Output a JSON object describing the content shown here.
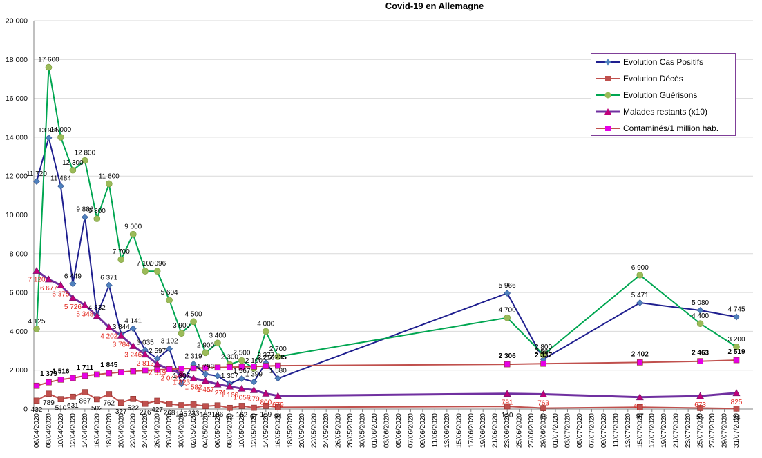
{
  "chart_data": {
    "type": "line",
    "title": "Covid-19 en Allemagne",
    "xlabel": "",
    "ylabel": "",
    "ylim": [
      0,
      20000
    ],
    "y_ticks": [
      "0",
      "2 000",
      "4 000",
      "6 000",
      "8 000",
      "10 000",
      "12 000",
      "14 000",
      "16 000",
      "18 000",
      "20 000"
    ],
    "x_tick_labels": [
      "06/04/2020",
      "08/04/2020",
      "10/04/2020",
      "12/04/2020",
      "14/04/2020",
      "16/04/2020",
      "18/04/2020",
      "20/04/2020",
      "22/04/2020",
      "24/04/2020",
      "26/04/2020",
      "28/04/2020",
      "30/04/2020",
      "02/05/2020",
      "04/05/2020",
      "06/05/2020",
      "08/05/2020",
      "10/05/2020",
      "12/05/2020",
      "14/05/2020",
      "16/05/2020",
      "18/05/2020",
      "20/05/2020",
      "22/05/2020",
      "24/05/2020",
      "26/05/2020",
      "28/05/2020",
      "30/05/2020",
      "01/06/2020",
      "03/06/2020",
      "05/06/2020",
      "07/06/2020",
      "09/06/2020",
      "11/06/2020",
      "13/06/2020",
      "15/06/2020",
      "17/06/2020",
      "19/06/2020",
      "21/06/2020",
      "23/06/2020",
      "25/06/2020",
      "27/06/2020",
      "29/06/2020",
      "01/07/2020",
      "03/07/2020",
      "05/07/2020",
      "07/07/2020",
      "09/07/2020",
      "11/07/2020",
      "13/07/2020",
      "15/07/2020",
      "17/07/2020",
      "19/07/2020",
      "21/07/2020",
      "23/07/2020",
      "25/07/2020",
      "27/07/2020",
      "29/07/2020",
      "31/07/2020"
    ],
    "legend_position": "top-right",
    "grid": "horizontal",
    "series": [
      {
        "name": "Evolution Cas Positifs",
        "color": "#1f1f8f",
        "marker": "diamond",
        "marker_color": "#4f81bd",
        "points": [
          {
            "x": "06/04/2020",
            "y": 11720,
            "label": "11 720"
          },
          {
            "x": "08/04/2020",
            "y": 13965,
            "label": "13 965"
          },
          {
            "x": "10/04/2020",
            "y": 11484,
            "label": "11 484"
          },
          {
            "x": "12/04/2020",
            "y": 6449,
            "label": "6 449"
          },
          {
            "x": "14/04/2020",
            "y": 9886,
            "label": "9 886"
          },
          {
            "x": "16/04/2020",
            "y": 4832,
            "label": "4 832"
          },
          {
            "x": "18/04/2020",
            "y": 6371,
            "label": "6 371"
          },
          {
            "x": "20/04/2020",
            "y": 3844,
            "label": "3 844"
          },
          {
            "x": "22/04/2020",
            "y": 4141,
            "label": "4 141"
          },
          {
            "x": "24/04/2020",
            "y": 3035,
            "label": "3 035"
          },
          {
            "x": "26/04/2020",
            "y": 2597,
            "label": "2 597"
          },
          {
            "x": "28/04/2020",
            "y": 3102,
            "label": "3 102"
          },
          {
            "x": "30/04/2020",
            "y": 1307,
            "label": "1 307"
          },
          {
            "x": "02/05/2020",
            "y": 2319,
            "label": "2 319"
          },
          {
            "x": "04/05/2020",
            "y": 1798,
            "label": "1 798"
          },
          {
            "x": "06/05/2020",
            "y": 1707,
            "label": ""
          },
          {
            "x": "08/05/2020",
            "y": 1307,
            "label": "1 307"
          },
          {
            "x": "10/05/2020",
            "y": 1567,
            "label": "1 567"
          },
          {
            "x": "12/05/2020",
            "y": 1399,
            "label": "1 399"
          },
          {
            "x": "14/05/2020",
            "y": 2377,
            "label": "2 377"
          },
          {
            "x": "16/05/2020",
            "y": 1580,
            "label": "1 580"
          },
          {
            "x": "23/06/2020",
            "y": 5966,
            "label": "5 966"
          },
          {
            "x": "29/06/2020",
            "y": 2564,
            "label": "2 564"
          },
          {
            "x": "15/07/2020",
            "y": 5471,
            "label": "5 471"
          },
          {
            "x": "25/07/2020",
            "y": 5080,
            "label": "5 080"
          },
          {
            "x": "31/07/2020",
            "y": 4745,
            "label": "4 745"
          }
        ]
      },
      {
        "name": "Evolution Décès",
        "color": "#c0504d",
        "marker": "square",
        "points": [
          {
            "x": "06/04/2020",
            "y": 432,
            "label": "432"
          },
          {
            "x": "08/04/2020",
            "y": 789,
            "label": "789"
          },
          {
            "x": "10/04/2020",
            "y": 510,
            "label": "510"
          },
          {
            "x": "12/04/2020",
            "y": 631,
            "label": "631"
          },
          {
            "x": "14/04/2020",
            "y": 867,
            "label": "867"
          },
          {
            "x": "16/04/2020",
            "y": 502,
            "label": "502"
          },
          {
            "x": "18/04/2020",
            "y": 762,
            "label": "762"
          },
          {
            "x": "20/04/2020",
            "y": 327,
            "label": "327"
          },
          {
            "x": "22/04/2020",
            "y": 522,
            "label": "522"
          },
          {
            "x": "24/04/2020",
            "y": 276,
            "label": "276"
          },
          {
            "x": "26/04/2020",
            "y": 427,
            "label": "427"
          },
          {
            "x": "28/04/2020",
            "y": 268,
            "label": "268"
          },
          {
            "x": "30/04/2020",
            "y": 195,
            "label": "195"
          },
          {
            "x": "02/05/2020",
            "y": 233,
            "label": "233"
          },
          {
            "x": "04/05/2020",
            "y": 152,
            "label": "152"
          },
          {
            "x": "06/05/2020",
            "y": 186,
            "label": "186"
          },
          {
            "x": "08/05/2020",
            "y": 62,
            "label": "62"
          },
          {
            "x": "10/05/2020",
            "y": 162,
            "label": "162"
          },
          {
            "x": "12/05/2020",
            "y": 67,
            "label": "67"
          },
          {
            "x": "14/05/2020",
            "y": 169,
            "label": "169"
          },
          {
            "x": "16/05/2020",
            "y": 94,
            "label": "94"
          },
          {
            "x": "23/06/2020",
            "y": 140,
            "label": "140"
          },
          {
            "x": "29/06/2020",
            "y": 48,
            "label": "48"
          },
          {
            "x": "15/07/2020",
            "y": 97,
            "label": "97"
          },
          {
            "x": "25/07/2020",
            "y": 54,
            "label": "54"
          },
          {
            "x": "31/07/2020",
            "y": 24,
            "label": "24"
          }
        ]
      },
      {
        "name": "Evolution Guérisons",
        "color": "#00a651",
        "marker": "circle",
        "marker_color": "#9bbb59",
        "points": [
          {
            "x": "06/04/2020",
            "y": 4125,
            "label": "4 125"
          },
          {
            "x": "08/04/2020",
            "y": 17600,
            "label": "17 600"
          },
          {
            "x": "10/04/2020",
            "y": 14000,
            "label": "14 000"
          },
          {
            "x": "12/04/2020",
            "y": 12300,
            "label": "12 300"
          },
          {
            "x": "14/04/2020",
            "y": 12800,
            "label": "12 800"
          },
          {
            "x": "16/04/2020",
            "y": 9800,
            "label": "9 800"
          },
          {
            "x": "18/04/2020",
            "y": 11600,
            "label": "11 600"
          },
          {
            "x": "20/04/2020",
            "y": 7700,
            "label": "7 700"
          },
          {
            "x": "22/04/2020",
            "y": 9000,
            "label": "9 000"
          },
          {
            "x": "24/04/2020",
            "y": 7100,
            "label": "7 100"
          },
          {
            "x": "26/04/2020",
            "y": 7096,
            "label": "7 096"
          },
          {
            "x": "28/04/2020",
            "y": 5604,
            "label": "5 604"
          },
          {
            "x": "30/04/2020",
            "y": 3900,
            "label": "3 900"
          },
          {
            "x": "02/05/2020",
            "y": 4500,
            "label": "4 500"
          },
          {
            "x": "04/05/2020",
            "y": 2900,
            "label": "2 900"
          },
          {
            "x": "06/05/2020",
            "y": 3400,
            "label": "3 400"
          },
          {
            "x": "08/05/2020",
            "y": 2300,
            "label": "2 300"
          },
          {
            "x": "10/05/2020",
            "y": 2500,
            "label": "2 500"
          },
          {
            "x": "12/05/2020",
            "y": 2100,
            "label": "2 100"
          },
          {
            "x": "14/05/2020",
            "y": 4000,
            "label": "4 000"
          },
          {
            "x": "16/05/2020",
            "y": 2700,
            "label": "2 700"
          },
          {
            "x": "23/06/2020",
            "y": 4700,
            "label": "4 700"
          },
          {
            "x": "29/06/2020",
            "y": 2800,
            "label": "2 800"
          },
          {
            "x": "15/07/2020",
            "y": 6900,
            "label": "6 900"
          },
          {
            "x": "25/07/2020",
            "y": 4400,
            "label": "4 400"
          },
          {
            "x": "31/07/2020",
            "y": 3200,
            "label": "3 200"
          }
        ]
      },
      {
        "name": "Malades restants (x10)",
        "color": "#7030a0",
        "marker": "triangle",
        "marker_color": "#c0007a",
        "label_color": "#e2231a",
        "points": [
          {
            "x": "06/04/2020",
            "y": 7120,
            "label": "7 120"
          },
          {
            "x": "08/04/2020",
            "y": 6677,
            "label": "6 677"
          },
          {
            "x": "10/04/2020",
            "y": 6375,
            "label": "6 375"
          },
          {
            "x": "12/04/2020",
            "y": 5726,
            "label": "5 726"
          },
          {
            "x": "14/04/2020",
            "y": 5348,
            "label": "5 348"
          },
          {
            "x": "16/04/2020",
            "y": 4801,
            "label": ""
          },
          {
            "x": "18/04/2020",
            "y": 4202,
            "label": "4 202"
          },
          {
            "x": "20/04/2020",
            "y": 3784,
            "label": "3 784"
          },
          {
            "x": "22/04/2020",
            "y": 3246,
            "label": "3 246"
          },
          {
            "x": "24/04/2020",
            "y": 2812,
            "label": "2 812"
          },
          {
            "x": "26/04/2020",
            "y": 2319,
            "label": "2 319"
          },
          {
            "x": "28/04/2020",
            "y": 2042,
            "label": "2 042"
          },
          {
            "x": "30/04/2020",
            "y": 1823,
            "label": "1 823"
          },
          {
            "x": "02/05/2020",
            "y": 1582,
            "label": "1 582"
          },
          {
            "x": "04/05/2020",
            "y": 1457,
            "label": "1 457"
          },
          {
            "x": "06/05/2020",
            "y": 1271,
            "label": "1 271"
          },
          {
            "x": "08/05/2020",
            "y": 1166,
            "label": "1 166"
          },
          {
            "x": "10/05/2020",
            "y": 1056,
            "label": "1 056"
          },
          {
            "x": "12/05/2020",
            "y": 979,
            "label": "979"
          },
          {
            "x": "14/05/2020",
            "y": 800,
            "label": "800"
          },
          {
            "x": "16/05/2020",
            "y": 679,
            "label": "679"
          },
          {
            "x": "23/06/2020",
            "y": 791,
            "label": "791"
          },
          {
            "x": "29/06/2020",
            "y": 763,
            "label": "763"
          },
          {
            "x": "15/07/2020",
            "y": 610,
            "label": "610"
          },
          {
            "x": "25/07/2020",
            "y": 673,
            "label": "673"
          },
          {
            "x": "31/07/2020",
            "y": 825,
            "label": "825"
          }
        ]
      },
      {
        "name": "Contaminés/1 million hab.",
        "color": "#c0504d",
        "marker": "square",
        "marker_color": "#e600e6",
        "label_bold": true,
        "points": [
          {
            "x": "06/04/2020",
            "y": 1200,
            "label": ""
          },
          {
            "x": "08/04/2020",
            "y": 1379,
            "label": "1 379"
          },
          {
            "x": "10/04/2020",
            "y": 1516,
            "label": "1 516"
          },
          {
            "x": "12/04/2020",
            "y": 1600,
            "label": ""
          },
          {
            "x": "14/04/2020",
            "y": 1711,
            "label": "1 711"
          },
          {
            "x": "16/04/2020",
            "y": 1780,
            "label": ""
          },
          {
            "x": "18/04/2020",
            "y": 1845,
            "label": "1 845"
          },
          {
            "x": "20/04/2020",
            "y": 1900,
            "label": ""
          },
          {
            "x": "22/04/2020",
            "y": 1950,
            "label": ""
          },
          {
            "x": "24/04/2020",
            "y": 1990,
            "label": ""
          },
          {
            "x": "26/04/2020",
            "y": 2020,
            "label": ""
          },
          {
            "x": "28/04/2020",
            "y": 2050,
            "label": ""
          },
          {
            "x": "30/04/2020",
            "y": 2080,
            "label": ""
          },
          {
            "x": "02/05/2020",
            "y": 2100,
            "label": ""
          },
          {
            "x": "04/05/2020",
            "y": 2120,
            "label": ""
          },
          {
            "x": "06/05/2020",
            "y": 2140,
            "label": ""
          },
          {
            "x": "08/05/2020",
            "y": 2155,
            "label": ""
          },
          {
            "x": "10/05/2020",
            "y": 2170,
            "label": ""
          },
          {
            "x": "12/05/2020",
            "y": 2190,
            "label": ""
          },
          {
            "x": "14/05/2020",
            "y": 2216,
            "label": "2 216"
          },
          {
            "x": "16/05/2020",
            "y": 2235,
            "label": "2 235"
          },
          {
            "x": "23/06/2020",
            "y": 2306,
            "label": "2 306"
          },
          {
            "x": "29/06/2020",
            "y": 2337,
            "label": "2 337"
          },
          {
            "x": "15/07/2020",
            "y": 2402,
            "label": "2 402"
          },
          {
            "x": "25/07/2020",
            "y": 2463,
            "label": "2 463"
          },
          {
            "x": "31/07/2020",
            "y": 2519,
            "label": "2 519"
          }
        ]
      }
    ]
  }
}
